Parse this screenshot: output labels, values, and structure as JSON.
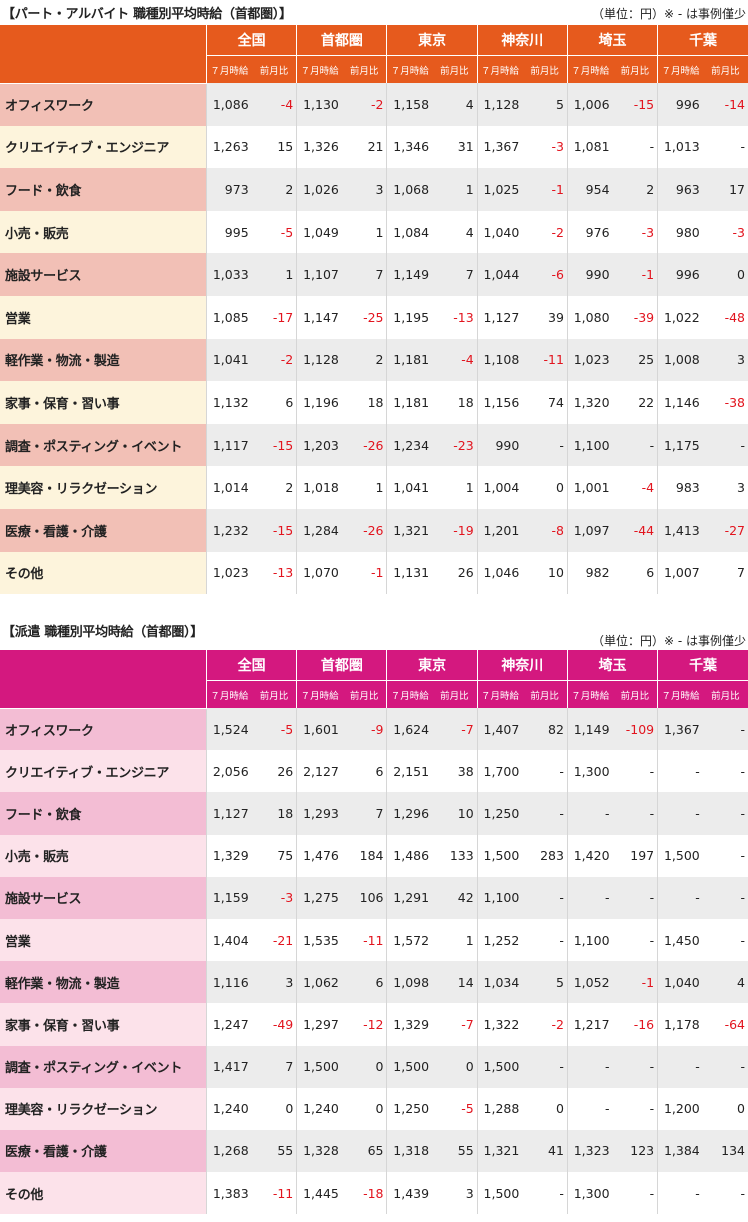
{
  "colors": {
    "part_header": "#e65a1d",
    "haken_header": "#d4187f",
    "negative": "#e2141e"
  },
  "part": {
    "title": "【パート・アルバイト 職種別平均時給（首都圏）】",
    "unit_note": "（単位：円）※ - は事例僅少",
    "regions": [
      "全国",
      "首都圏",
      "東京",
      "神奈川",
      "埼玉",
      "千葉"
    ],
    "sub_headers": [
      "７月時給",
      "前月比"
    ],
    "rows": [
      {
        "category": "オフィスワーク",
        "cells": [
          "1,086",
          "-4",
          "1,130",
          "-2",
          "1,158",
          "4",
          "1,128",
          "5",
          "1,006",
          "-15",
          "996",
          "-14"
        ]
      },
      {
        "category": "クリエイティブ・エンジニア",
        "cells": [
          "1,263",
          "15",
          "1,326",
          "21",
          "1,346",
          "31",
          "1,367",
          "-3",
          "1,081",
          "-",
          "1,013",
          "-"
        ]
      },
      {
        "category": "フード・飲食",
        "cells": [
          "973",
          "2",
          "1,026",
          "3",
          "1,068",
          "1",
          "1,025",
          "-1",
          "954",
          "2",
          "963",
          "17"
        ]
      },
      {
        "category": "小売・販売",
        "cells": [
          "995",
          "-5",
          "1,049",
          "1",
          "1,084",
          "4",
          "1,040",
          "-2",
          "976",
          "-3",
          "980",
          "-3"
        ]
      },
      {
        "category": "施設サービス",
        "cells": [
          "1,033",
          "1",
          "1,107",
          "7",
          "1,149",
          "7",
          "1,044",
          "-6",
          "990",
          "-1",
          "996",
          "0"
        ]
      },
      {
        "category": "営業",
        "cells": [
          "1,085",
          "-17",
          "1,147",
          "-25",
          "1,195",
          "-13",
          "1,127",
          "39",
          "1,080",
          "-39",
          "1,022",
          "-48"
        ]
      },
      {
        "category": "軽作業・物流・製造",
        "cells": [
          "1,041",
          "-2",
          "1,128",
          "2",
          "1,181",
          "-4",
          "1,108",
          "-11",
          "1,023",
          "25",
          "1,008",
          "3"
        ]
      },
      {
        "category": "家事・保育・習い事",
        "cells": [
          "1,132",
          "6",
          "1,196",
          "18",
          "1,181",
          "18",
          "1,156",
          "74",
          "1,320",
          "22",
          "1,146",
          "-38"
        ]
      },
      {
        "category": "調査・ポスティング・イベント",
        "cells": [
          "1,117",
          "-15",
          "1,203",
          "-26",
          "1,234",
          "-23",
          "990",
          "-",
          "1,100",
          "-",
          "1,175",
          "-"
        ]
      },
      {
        "category": "理美容・リラクゼーション",
        "cells": [
          "1,014",
          "2",
          "1,018",
          "1",
          "1,041",
          "1",
          "1,004",
          "0",
          "1,001",
          "-4",
          "983",
          "3"
        ]
      },
      {
        "category": "医療・看護・介護",
        "cells": [
          "1,232",
          "-15",
          "1,284",
          "-26",
          "1,321",
          "-19",
          "1,201",
          "-8",
          "1,097",
          "-44",
          "1,413",
          "-27"
        ]
      },
      {
        "category": "その他",
        "cells": [
          "1,023",
          "-13",
          "1,070",
          "-1",
          "1,131",
          "26",
          "1,046",
          "10",
          "982",
          "6",
          "1,007",
          "7"
        ]
      }
    ]
  },
  "haken": {
    "title": "【派遣 職種別平均時給（首都圏）】",
    "unit_note": "（単位：円）※ - は事例僅少",
    "regions": [
      "全国",
      "首都圏",
      "東京",
      "神奈川",
      "埼玉",
      "千葉"
    ],
    "sub_headers": [
      "７月時給",
      "前月比"
    ],
    "rows": [
      {
        "category": "オフィスワーク",
        "cells": [
          "1,524",
          "-5",
          "1,601",
          "-9",
          "1,624",
          "-7",
          "1,407",
          "82",
          "1,149",
          "-109",
          "1,367",
          "-"
        ]
      },
      {
        "category": "クリエイティブ・エンジニア",
        "cells": [
          "2,056",
          "26",
          "2,127",
          "6",
          "2,151",
          "38",
          "1,700",
          "-",
          "1,300",
          "-",
          "-",
          "-"
        ]
      },
      {
        "category": "フード・飲食",
        "cells": [
          "1,127",
          "18",
          "1,293",
          "7",
          "1,296",
          "10",
          "1,250",
          "-",
          "-",
          "-",
          "-",
          "-"
        ]
      },
      {
        "category": "小売・販売",
        "cells": [
          "1,329",
          "75",
          "1,476",
          "184",
          "1,486",
          "133",
          "1,500",
          "283",
          "1,420",
          "197",
          "1,500",
          "-"
        ]
      },
      {
        "category": "施設サービス",
        "cells": [
          "1,159",
          "-3",
          "1,275",
          "106",
          "1,291",
          "42",
          "1,100",
          "-",
          "-",
          "-",
          "-",
          "-"
        ]
      },
      {
        "category": "営業",
        "cells": [
          "1,404",
          "-21",
          "1,535",
          "-11",
          "1,572",
          "1",
          "1,252",
          "-",
          "1,100",
          "-",
          "1,450",
          "-"
        ]
      },
      {
        "category": "軽作業・物流・製造",
        "cells": [
          "1,116",
          "3",
          "1,062",
          "6",
          "1,098",
          "14",
          "1,034",
          "5",
          "1,052",
          "-1",
          "1,040",
          "4"
        ]
      },
      {
        "category": "家事・保育・習い事",
        "cells": [
          "1,247",
          "-49",
          "1,297",
          "-12",
          "1,329",
          "-7",
          "1,322",
          "-2",
          "1,217",
          "-16",
          "1,178",
          "-64"
        ]
      },
      {
        "category": "調査・ポスティング・イベント",
        "cells": [
          "1,417",
          "7",
          "1,500",
          "0",
          "1,500",
          "0",
          "1,500",
          "-",
          "-",
          "-",
          "-",
          "-"
        ]
      },
      {
        "category": "理美容・リラクゼーション",
        "cells": [
          "1,240",
          "0",
          "1,240",
          "0",
          "1,250",
          "-5",
          "1,288",
          "0",
          "-",
          "-",
          "1,200",
          "0"
        ]
      },
      {
        "category": "医療・看護・介護",
        "cells": [
          "1,268",
          "55",
          "1,328",
          "65",
          "1,318",
          "55",
          "1,321",
          "41",
          "1,323",
          "123",
          "1,384",
          "134"
        ]
      },
      {
        "category": "その他",
        "cells": [
          "1,383",
          "-11",
          "1,445",
          "-18",
          "1,439",
          "3",
          "1,500",
          "-",
          "1,300",
          "-",
          "-",
          "-"
        ]
      }
    ]
  }
}
